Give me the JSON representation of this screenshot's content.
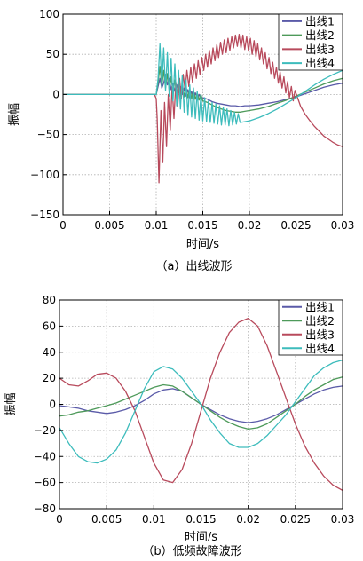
{
  "chart_data": [
    {
      "type": "line",
      "xlabel": "时间/s",
      "ylabel": "振幅",
      "caption": "（a）出线波形",
      "xlim": [
        0,
        0.03
      ],
      "ylim": [
        -150,
        100
      ],
      "xticks": [
        0,
        0.005,
        0.01,
        0.015,
        0.02,
        0.025,
        0.03
      ],
      "xtick_labels": [
        "0",
        "0.005",
        "0.01",
        "0.015",
        "0.02",
        "0.025",
        "0.03"
      ],
      "yticks": [
        -150,
        -100,
        -50,
        0,
        50,
        100
      ],
      "ytick_labels": [
        "−150",
        "−100",
        "−50",
        "0",
        "50",
        "100"
      ],
      "grid": true,
      "legend_position": "top-right",
      "series": [
        {
          "name": "出线1",
          "color": "#5a5aa8",
          "x": [
            0,
            0.01,
            0.0102,
            0.0104,
            0.0106,
            0.0108,
            0.011,
            0.0112,
            0.0114,
            0.0116,
            0.0118,
            0.012,
            0.0122,
            0.0124,
            0.0126,
            0.0128,
            0.013,
            0.0132,
            0.0134,
            0.0136,
            0.0138,
            0.014,
            0.0142,
            0.0144,
            0.0146,
            0.0148,
            0.015,
            0.0155,
            0.016,
            0.0165,
            0.017,
            0.0175,
            0.018,
            0.0185,
            0.019,
            0.0195,
            0.02,
            0.021,
            0.022,
            0.023,
            0.024,
            0.025,
            0.026,
            0.027,
            0.028,
            0.029,
            0.03
          ],
          "y": [
            0,
            0,
            10,
            20,
            8,
            14,
            25,
            12,
            20,
            6,
            14,
            4,
            12,
            2,
            10,
            0,
            8,
            -2,
            6,
            -4,
            4,
            -6,
            2,
            -5,
            0,
            -6,
            -4,
            -6,
            -9,
            -11,
            -12,
            -13,
            -14,
            -14,
            -15,
            -14,
            -14,
            -13,
            -11,
            -9,
            -6,
            -3,
            1,
            5,
            9,
            12,
            14
          ]
        },
        {
          "name": "出线2",
          "color": "#4e9a5a",
          "x": [
            0,
            0.01,
            0.0102,
            0.0104,
            0.0106,
            0.0108,
            0.011,
            0.0112,
            0.0114,
            0.0116,
            0.0118,
            0.012,
            0.0122,
            0.0124,
            0.0126,
            0.0128,
            0.013,
            0.0132,
            0.0134,
            0.0136,
            0.0138,
            0.014,
            0.0142,
            0.0144,
            0.0146,
            0.0148,
            0.015,
            0.0155,
            0.016,
            0.0165,
            0.017,
            0.0175,
            0.018,
            0.0185,
            0.019,
            0.0195,
            0.02,
            0.021,
            0.022,
            0.023,
            0.024,
            0.025,
            0.026,
            0.027,
            0.028,
            0.029,
            0.03
          ],
          "y": [
            0,
            0,
            15,
            35,
            10,
            30,
            8,
            26,
            5,
            22,
            2,
            18,
            0,
            15,
            -2,
            12,
            -3,
            10,
            -4,
            7,
            -5,
            5,
            -6,
            2,
            -7,
            0,
            -8,
            -10,
            -13,
            -16,
            -18,
            -20,
            -21,
            -22,
            -22,
            -21,
            -20,
            -18,
            -15,
            -11,
            -7,
            -2,
            3,
            8,
            13,
            17,
            20
          ]
        },
        {
          "name": "出线3",
          "color": "#b84a5c",
          "x": [
            0,
            0.0098,
            0.01,
            0.0101,
            0.0103,
            0.0105,
            0.0107,
            0.0109,
            0.0111,
            0.0113,
            0.0115,
            0.0117,
            0.0119,
            0.0121,
            0.0123,
            0.0125,
            0.0127,
            0.0129,
            0.0131,
            0.0133,
            0.0135,
            0.0137,
            0.0139,
            0.0141,
            0.0143,
            0.0145,
            0.0147,
            0.0149,
            0.0151,
            0.0153,
            0.0155,
            0.0157,
            0.0159,
            0.0161,
            0.0163,
            0.0165,
            0.0167,
            0.0169,
            0.0171,
            0.0173,
            0.0175,
            0.0177,
            0.0179,
            0.0181,
            0.0183,
            0.0185,
            0.0187,
            0.0189,
            0.0191,
            0.0193,
            0.0195,
            0.0197,
            0.0199,
            0.0201,
            0.0203,
            0.0205,
            0.0207,
            0.0209,
            0.0211,
            0.0213,
            0.0215,
            0.0217,
            0.0219,
            0.0221,
            0.0223,
            0.0225,
            0.0227,
            0.0229,
            0.0231,
            0.0233,
            0.0235,
            0.0237,
            0.0239,
            0.0241,
            0.0243,
            0.0245,
            0.0247,
            0.0249,
            0.0255,
            0.026,
            0.0265,
            0.027,
            0.0275,
            0.028,
            0.0285,
            0.029,
            0.0295,
            0.03
          ],
          "y": [
            0,
            0,
            -5,
            -30,
            -110,
            -20,
            -85,
            -10,
            -65,
            0,
            -45,
            10,
            -30,
            15,
            -15,
            20,
            -5,
            25,
            5,
            30,
            10,
            34,
            15,
            38,
            20,
            42,
            25,
            46,
            30,
            50,
            34,
            55,
            38,
            58,
            42,
            62,
            46,
            65,
            50,
            68,
            52,
            70,
            55,
            72,
            58,
            74,
            60,
            75,
            58,
            74,
            56,
            72,
            54,
            70,
            50,
            67,
            47,
            63,
            43,
            58,
            38,
            52,
            32,
            46,
            26,
            40,
            20,
            34,
            14,
            28,
            8,
            22,
            2,
            16,
            -4,
            10,
            -8,
            5,
            -15,
            -25,
            -33,
            -40,
            -46,
            -52,
            -56,
            -60,
            -63,
            -65
          ]
        },
        {
          "name": "出线4",
          "color": "#3dbcbc",
          "x": [
            0,
            0.01,
            0.0102,
            0.0104,
            0.0106,
            0.0108,
            0.011,
            0.0112,
            0.0114,
            0.0116,
            0.0118,
            0.012,
            0.0122,
            0.0124,
            0.0126,
            0.0128,
            0.013,
            0.0132,
            0.0134,
            0.0136,
            0.0138,
            0.014,
            0.0142,
            0.0144,
            0.0146,
            0.0148,
            0.015,
            0.0152,
            0.0154,
            0.0156,
            0.0158,
            0.016,
            0.0162,
            0.0164,
            0.0166,
            0.0168,
            0.017,
            0.0172,
            0.0174,
            0.0176,
            0.0178,
            0.018,
            0.0182,
            0.0184,
            0.0186,
            0.0188,
            0.019,
            0.0195,
            0.02,
            0.021,
            0.022,
            0.023,
            0.024,
            0.025,
            0.026,
            0.027,
            0.028,
            0.029,
            0.03
          ],
          "y": [
            0,
            0,
            20,
            63,
            10,
            58,
            5,
            52,
            -2,
            45,
            -8,
            38,
            -14,
            30,
            -18,
            24,
            -22,
            18,
            -26,
            12,
            -28,
            8,
            -30,
            4,
            -32,
            0,
            -33,
            -4,
            -34,
            -8,
            -35,
            -10,
            -36,
            -12,
            -37,
            -14,
            -38,
            -16,
            -38,
            -18,
            -39,
            -20,
            -38,
            -22,
            -37,
            -24,
            -35,
            -34,
            -33,
            -29,
            -24,
            -18,
            -11,
            -4,
            4,
            12,
            19,
            25,
            30
          ]
        }
      ]
    },
    {
      "type": "line",
      "xlabel": "时间/s",
      "ylabel": "振幅",
      "caption": "（b）低频故障波形",
      "xlim": [
        0,
        0.03
      ],
      "ylim": [
        -80,
        80
      ],
      "xticks": [
        0,
        0.005,
        0.01,
        0.015,
        0.02,
        0.025,
        0.03
      ],
      "xtick_labels": [
        "0",
        "0.005",
        "0.01",
        "0.015",
        "0.02",
        "0.025",
        "0.03"
      ],
      "yticks": [
        -80,
        -60,
        -40,
        -20,
        0,
        20,
        40,
        60,
        80
      ],
      "ytick_labels": [
        "−80",
        "−60",
        "−40",
        "−20",
        "0",
        "20",
        "40",
        "60",
        "80"
      ],
      "grid": true,
      "legend_position": "top-right",
      "series": [
        {
          "name": "出线1",
          "color": "#5a5aa8",
          "x": [
            0,
            0.001,
            0.002,
            0.003,
            0.004,
            0.005,
            0.006,
            0.007,
            0.008,
            0.009,
            0.01,
            0.011,
            0.012,
            0.013,
            0.014,
            0.015,
            0.016,
            0.017,
            0.018,
            0.019,
            0.02,
            0.021,
            0.022,
            0.023,
            0.024,
            0.025,
            0.026,
            0.027,
            0.028,
            0.029,
            0.03
          ],
          "y": [
            -1,
            -2,
            -3,
            -5,
            -6,
            -7,
            -6,
            -4,
            -1,
            3,
            8,
            11,
            12,
            10,
            5,
            0,
            -4,
            -8,
            -11,
            -13,
            -14,
            -13,
            -11,
            -8,
            -4,
            0,
            4,
            8,
            11,
            13,
            14
          ]
        },
        {
          "name": "出线2",
          "color": "#4e9a5a",
          "x": [
            0,
            0.001,
            0.002,
            0.003,
            0.004,
            0.005,
            0.006,
            0.007,
            0.008,
            0.009,
            0.01,
            0.011,
            0.012,
            0.013,
            0.014,
            0.015,
            0.016,
            0.017,
            0.018,
            0.019,
            0.02,
            0.021,
            0.022,
            0.023,
            0.024,
            0.025,
            0.026,
            0.027,
            0.028,
            0.029,
            0.03
          ],
          "y": [
            -9,
            -8,
            -6,
            -5,
            -3,
            -1,
            1,
            4,
            7,
            10,
            13,
            15,
            14,
            10,
            5,
            0,
            -5,
            -10,
            -14,
            -17,
            -19,
            -18,
            -15,
            -10,
            -5,
            0,
            6,
            11,
            15,
            19,
            21
          ]
        },
        {
          "name": "出线3",
          "color": "#b84a5c",
          "x": [
            0,
            0.001,
            0.002,
            0.003,
            0.004,
            0.005,
            0.006,
            0.007,
            0.008,
            0.009,
            0.01,
            0.011,
            0.012,
            0.013,
            0.014,
            0.015,
            0.016,
            0.017,
            0.018,
            0.019,
            0.02,
            0.021,
            0.022,
            0.023,
            0.024,
            0.025,
            0.026,
            0.027,
            0.028,
            0.029,
            0.03
          ],
          "y": [
            20,
            15,
            14,
            18,
            23,
            24,
            20,
            10,
            -5,
            -25,
            -45,
            -58,
            -60,
            -50,
            -30,
            -5,
            20,
            40,
            55,
            63,
            66,
            60,
            45,
            25,
            5,
            -15,
            -32,
            -45,
            -55,
            -62,
            -66
          ]
        },
        {
          "name": "出线4",
          "color": "#3dbcbc",
          "x": [
            0,
            0.001,
            0.002,
            0.003,
            0.004,
            0.005,
            0.006,
            0.007,
            0.008,
            0.009,
            0.01,
            0.011,
            0.012,
            0.013,
            0.014,
            0.015,
            0.016,
            0.017,
            0.018,
            0.019,
            0.02,
            0.021,
            0.022,
            0.023,
            0.024,
            0.025,
            0.026,
            0.027,
            0.028,
            0.029,
            0.03
          ],
          "y": [
            -18,
            -30,
            -40,
            -44,
            -45,
            -42,
            -35,
            -22,
            -5,
            12,
            25,
            29,
            27,
            20,
            10,
            0,
            -12,
            -22,
            -30,
            -33,
            -33,
            -30,
            -24,
            -16,
            -8,
            2,
            12,
            22,
            28,
            32,
            34
          ]
        }
      ]
    }
  ]
}
